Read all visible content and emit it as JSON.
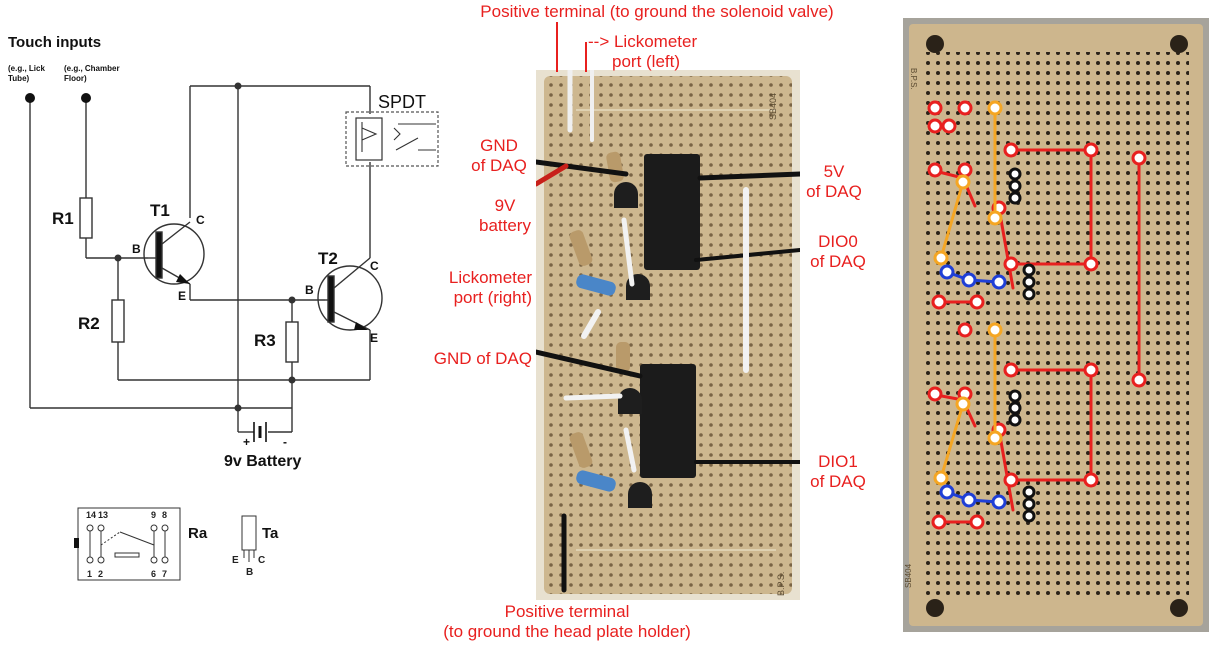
{
  "schematic": {
    "title": "Touch inputs",
    "input1": [
      "(e.g., Lick",
      "Tube)"
    ],
    "input2": [
      "(e.g., Chamber",
      "Floor)"
    ],
    "r1": "R1",
    "r2": "R2",
    "r3": "R3",
    "t1": "T1",
    "t2": "T2",
    "b": "B",
    "c": "C",
    "e": "E",
    "spdt": "SPDT",
    "battery": "9v Battery",
    "plus": "+",
    "minus": "-"
  },
  "legend": {
    "relay_pins_top": [
      "14",
      "13",
      "9",
      "8"
    ],
    "relay_pins_bottom": [
      "1",
      "2",
      "6",
      "7"
    ],
    "relay_label": "Ra",
    "transistor_label": "Ta",
    "transistor_pins": [
      "E",
      "B",
      "C"
    ]
  },
  "photo_labels": {
    "top_positive": "Positive terminal (to ground the solenoid valve)",
    "lickometer_left": [
      "--> Lickometer",
      "port (left)"
    ],
    "gnd_daq_1": [
      "GND",
      "of DAQ"
    ],
    "battery_9v": [
      "9V",
      "battery"
    ],
    "lickometer_right": [
      "Lickometer",
      "port (right)"
    ],
    "gnd_daq_2": "GND of DAQ",
    "v5_daq": [
      "5V",
      "of DAQ"
    ],
    "dio0_daq": [
      "DIO0",
      "of DAQ"
    ],
    "dio1_daq": [
      "DIO1",
      "of DAQ"
    ],
    "bottom_positive": [
      "Positive terminal",
      "(to ground the head plate holder)"
    ]
  },
  "board_marks": {
    "photo_code": "SB404",
    "photo_maker": "B.P.S.",
    "diagram_maker": "B.P.S.",
    "diagram_code": "SB404"
  },
  "colors": {
    "annotation_red": "#e8201f",
    "board_tan": "#c9b48c",
    "wire_orange": "#f5a623",
    "wire_blue": "#1f3fd6",
    "wire_black": "#111111"
  }
}
